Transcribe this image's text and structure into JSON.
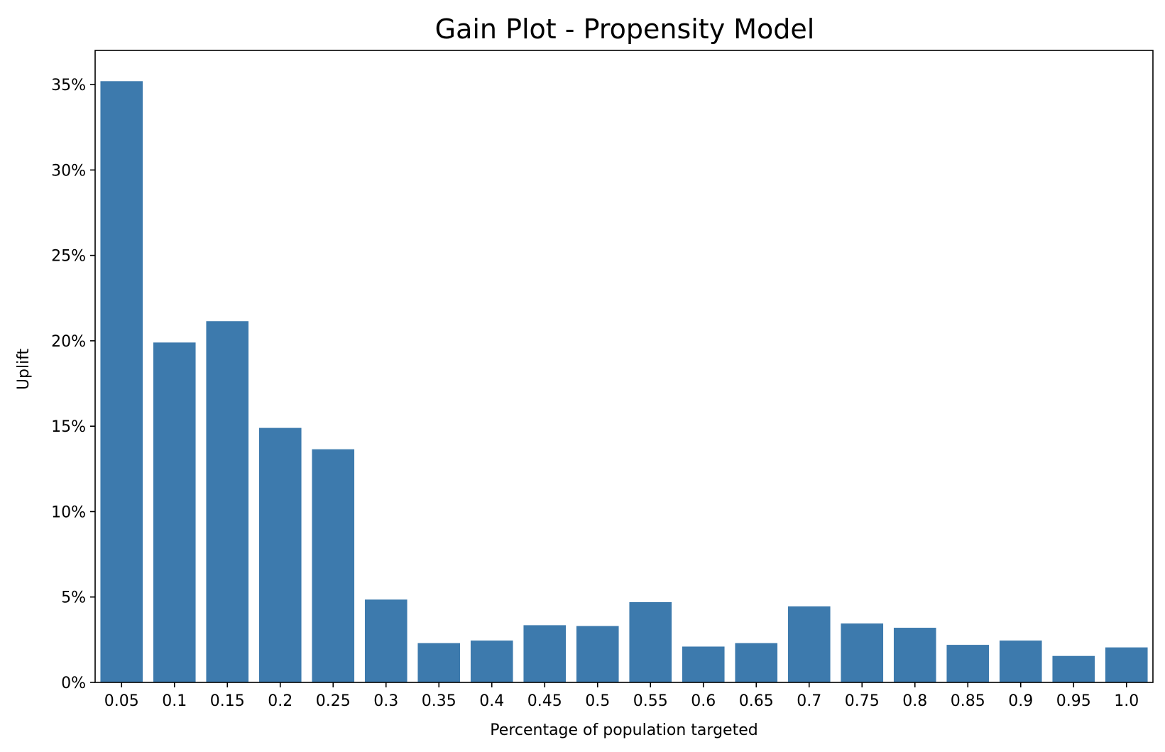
{
  "chart_data": {
    "type": "bar",
    "title": "Gain Plot - Propensity Model",
    "xlabel": "Percentage of population targeted",
    "ylabel": "Uplift",
    "categories": [
      "0.05",
      "0.1",
      "0.15",
      "0.2",
      "0.25",
      "0.3",
      "0.35",
      "0.4",
      "0.45",
      "0.5",
      "0.55",
      "0.6",
      "0.65",
      "0.7",
      "0.75",
      "0.8",
      "0.85",
      "0.9",
      "0.95",
      "1.0"
    ],
    "values": [
      35.2,
      19.9,
      21.15,
      14.9,
      13.65,
      4.85,
      2.3,
      2.45,
      3.35,
      3.3,
      4.7,
      2.1,
      2.3,
      4.45,
      3.45,
      3.2,
      2.2,
      2.45,
      1.55,
      2.05
    ],
    "ylim": [
      0,
      37
    ],
    "yticks": [
      0,
      5,
      10,
      15,
      20,
      25,
      30,
      35
    ],
    "ytick_labels": [
      "0%",
      "5%",
      "10%",
      "15%",
      "20%",
      "25%",
      "30%",
      "35%"
    ],
    "bar_color": "#3d7aad",
    "grid": false,
    "legend": "none"
  }
}
